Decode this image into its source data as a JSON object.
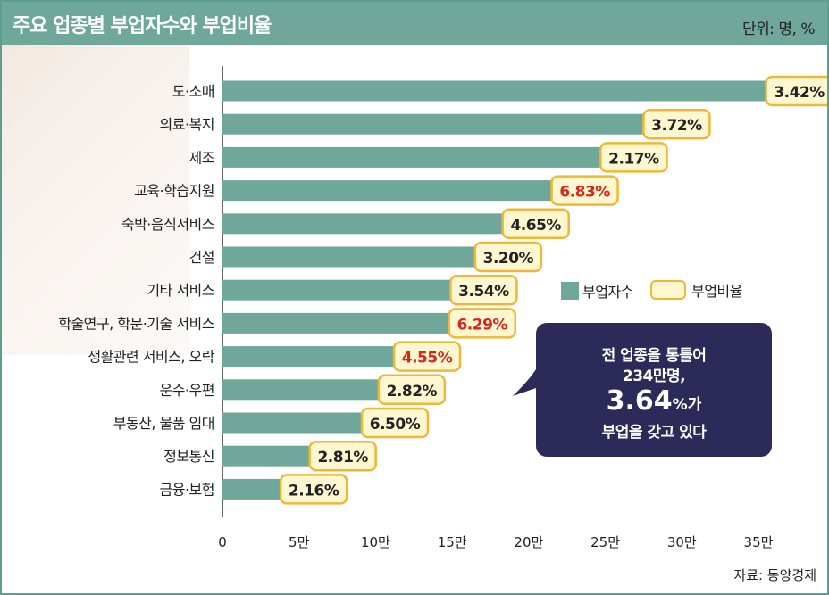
{
  "title": "주요 업종별 부업자수와 부업비율",
  "unit": "단위: 명, %",
  "source": "자료: 동양경제",
  "legend": {
    "bar": "부업자수",
    "rate": "부업비율"
  },
  "callout": {
    "line1": "전 업종을 통틀어",
    "line2": "234만명,",
    "value": "3.64",
    "value_suffix": "%가",
    "line4": "부업을 갖고 있다"
  },
  "colors": {
    "bar": "#6fa79b",
    "rate_bg": "#fff7cf",
    "rate_border": "#efb73a",
    "highlight": "#d9251c",
    "callout_bg": "#2b2a58"
  },
  "chart_data": {
    "type": "bar",
    "orientation": "horizontal",
    "title": "주요 업종별 부업자수와 부업비율",
    "unit": "명, %",
    "xlim": [
      0,
      350000
    ],
    "tick_values": [
      0,
      50000,
      100000,
      150000,
      200000,
      250000,
      300000,
      350000
    ],
    "tick_labels": [
      "0",
      "5만",
      "10만",
      "15만",
      "20만",
      "25만",
      "30만",
      "35만"
    ],
    "categories": [
      "도·소매",
      "의료·복지",
      "제조",
      "교육·학습지원",
      "숙박·음식서비스",
      "건설",
      "기타 서비스",
      "학술연구, 학문·기술 서비스",
      "생활관련 서비스, 오락",
      "운수·우편",
      "부동산, 물품 임대",
      "정보통신",
      "금융·보험"
    ],
    "series": [
      {
        "name": "부업자수",
        "values": [
          355000,
          275000,
          247000,
          215000,
          183000,
          165000,
          149000,
          148000,
          112000,
          102000,
          91000,
          57000,
          38000
        ]
      },
      {
        "name": "부업비율",
        "values": [
          3.42,
          3.72,
          2.17,
          6.83,
          4.65,
          3.2,
          3.54,
          6.29,
          4.55,
          2.82,
          6.5,
          2.81,
          2.16
        ],
        "labels": [
          "3.42%",
          "3.72%",
          "2.17%",
          "6.83%",
          "4.65%",
          "3.20%",
          "3.54%",
          "6.29%",
          "4.55%",
          "2.82%",
          "6.50%",
          "2.81%",
          "2.16%"
        ],
        "highlighted": [
          false,
          false,
          false,
          true,
          false,
          false,
          false,
          true,
          true,
          false,
          false,
          false,
          false
        ]
      }
    ]
  }
}
